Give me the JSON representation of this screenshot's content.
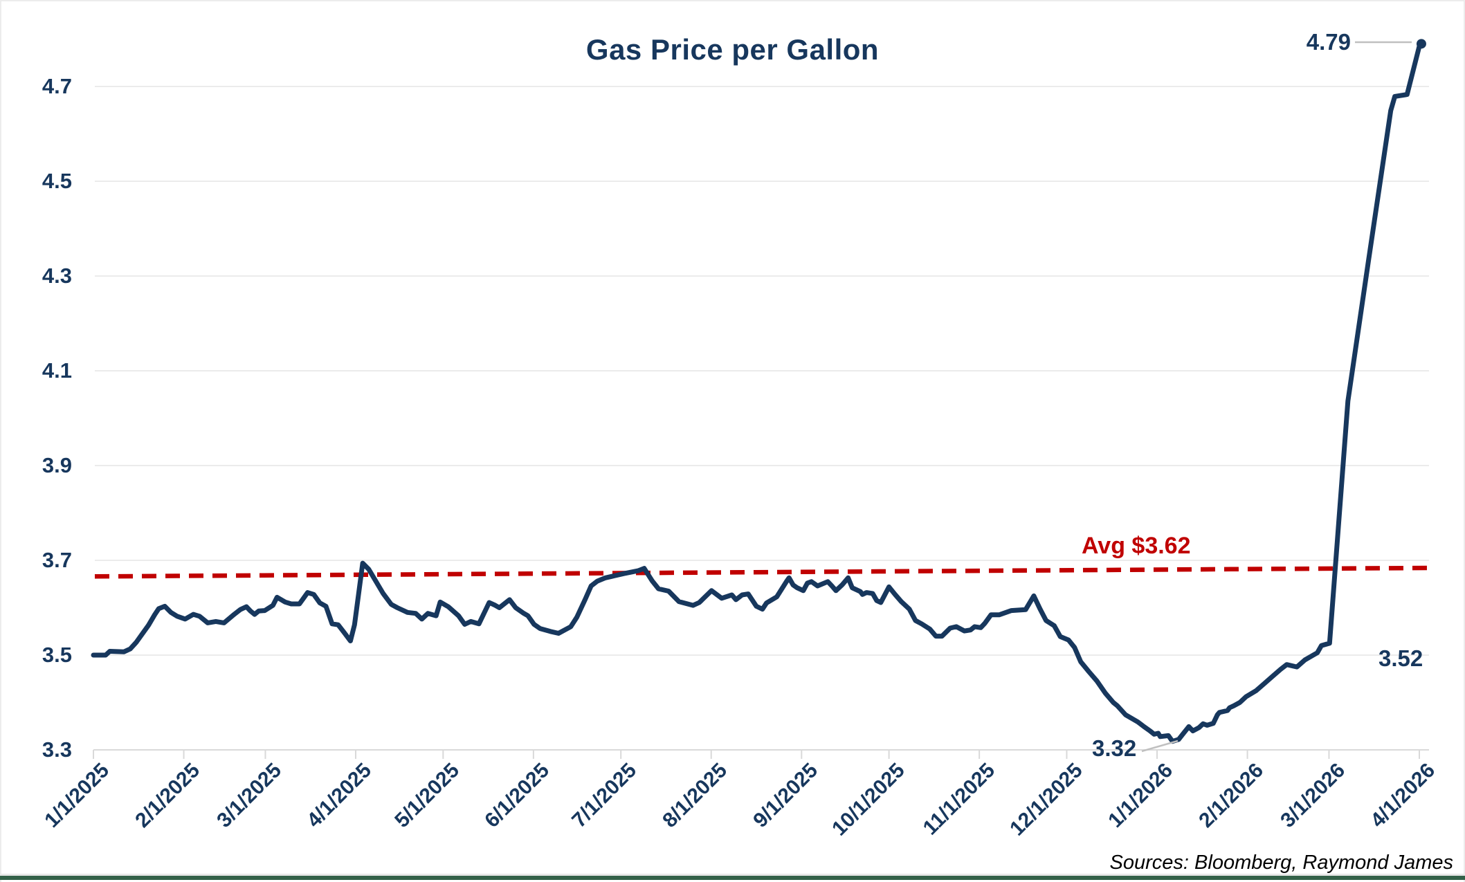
{
  "title": "Gas Price per Gallon",
  "source_note": "Sources: Bloomberg, Raymond James",
  "annotations": {
    "avg_label": "Avg $3.62",
    "peak_label": "4.79",
    "pre_spike_label": "3.52",
    "min_label": "3.32"
  },
  "colors": {
    "navy": "#17375d",
    "red": "#c00000",
    "grid": "#ebebeb",
    "axis": "#d9d9d9",
    "leader": "#c0c0c0",
    "frame_green": "#336148"
  },
  "chart_data": {
    "type": "line",
    "title": "Gas Price per Gallon",
    "ylabel": "",
    "xlabel": "",
    "ylim": [
      3.3,
      4.7
    ],
    "grid": true,
    "y_ticks": [
      3.3,
      3.5,
      3.7,
      3.9,
      4.1,
      4.3,
      4.5,
      4.7
    ],
    "x_tick_labels": [
      "1/1/2025",
      "2/1/2025",
      "3/1/2025",
      "4/1/2025",
      "5/1/2025",
      "6/1/2025",
      "7/1/2025",
      "8/1/2025",
      "9/1/2025",
      "10/1/2025",
      "11/1/2025",
      "12/1/2025",
      "1/1/2026",
      "2/1/2026",
      "3/1/2026",
      "4/1/2026"
    ],
    "x_tick_days": [
      0,
      31,
      59,
      90,
      120,
      151,
      181,
      212,
      243,
      273,
      304,
      334,
      365,
      396,
      424,
      455
    ],
    "avg_line": {
      "label": "Avg $3.62",
      "value": 3.62,
      "draw_start_value": 3.666,
      "draw_end_value": 3.684
    },
    "series": [
      {
        "name": "Gas Price per Gallon",
        "x_unit": "weeks_since_1/1/2025",
        "points": [
          [
            0,
            3.5
          ],
          [
            0.6,
            3.5
          ],
          [
            0.8,
            3.508
          ],
          [
            1.5,
            3.507
          ],
          [
            1.8,
            3.513
          ],
          [
            2.1,
            3.527
          ],
          [
            2.4,
            3.545
          ],
          [
            2.7,
            3.563
          ],
          [
            3.0,
            3.585
          ],
          [
            3.2,
            3.598
          ],
          [
            3.5,
            3.603
          ],
          [
            3.8,
            3.59
          ],
          [
            4.1,
            3.582
          ],
          [
            4.5,
            3.576
          ],
          [
            4.9,
            3.586
          ],
          [
            5.2,
            3.582
          ],
          [
            5.6,
            3.568
          ],
          [
            6.0,
            3.571
          ],
          [
            6.4,
            3.568
          ],
          [
            6.9,
            3.586
          ],
          [
            7.2,
            3.596
          ],
          [
            7.5,
            3.602
          ],
          [
            7.7,
            3.593
          ],
          [
            7.9,
            3.586
          ],
          [
            8.1,
            3.593
          ],
          [
            8.4,
            3.594
          ],
          [
            8.8,
            3.605
          ],
          [
            9.0,
            3.622
          ],
          [
            9.4,
            3.612
          ],
          [
            9.7,
            3.608
          ],
          [
            10.1,
            3.608
          ],
          [
            10.3,
            3.62
          ],
          [
            10.5,
            3.632
          ],
          [
            10.8,
            3.628
          ],
          [
            11.1,
            3.61
          ],
          [
            11.4,
            3.603
          ],
          [
            11.7,
            3.566
          ],
          [
            12.0,
            3.564
          ],
          [
            12.3,
            3.547
          ],
          [
            12.6,
            3.53
          ],
          [
            12.8,
            3.564
          ],
          [
            13.2,
            3.694
          ],
          [
            13.5,
            3.681
          ],
          [
            13.9,
            3.652
          ],
          [
            14.2,
            3.63
          ],
          [
            14.6,
            3.607
          ],
          [
            14.9,
            3.6
          ],
          [
            15.4,
            3.59
          ],
          [
            15.8,
            3.588
          ],
          [
            16.1,
            3.576
          ],
          [
            16.4,
            3.588
          ],
          [
            16.8,
            3.583
          ],
          [
            17.0,
            3.612
          ],
          [
            17.4,
            3.602
          ],
          [
            17.9,
            3.583
          ],
          [
            18.2,
            3.565
          ],
          [
            18.5,
            3.571
          ],
          [
            18.9,
            3.566
          ],
          [
            19.4,
            3.611
          ],
          [
            19.7,
            3.605
          ],
          [
            19.9,
            3.6
          ],
          [
            20.4,
            3.617
          ],
          [
            20.7,
            3.6
          ],
          [
            21.1,
            3.588
          ],
          [
            21.3,
            3.583
          ],
          [
            21.6,
            3.565
          ],
          [
            21.9,
            3.556
          ],
          [
            22.4,
            3.55
          ],
          [
            22.8,
            3.546
          ],
          [
            23.4,
            3.56
          ],
          [
            23.7,
            3.58
          ],
          [
            24.1,
            3.617
          ],
          [
            24.4,
            3.646
          ],
          [
            24.7,
            3.656
          ],
          [
            25.1,
            3.663
          ],
          [
            25.4,
            3.666
          ],
          [
            26.0,
            3.672
          ],
          [
            26.7,
            3.678
          ],
          [
            27.0,
            3.683
          ],
          [
            27.4,
            3.656
          ],
          [
            27.7,
            3.64
          ],
          [
            28.2,
            3.635
          ],
          [
            28.7,
            3.613
          ],
          [
            29.4,
            3.605
          ],
          [
            29.7,
            3.611
          ],
          [
            30.3,
            3.636
          ],
          [
            30.8,
            3.62
          ],
          [
            31.3,
            3.627
          ],
          [
            31.5,
            3.617
          ],
          [
            31.8,
            3.627
          ],
          [
            32.1,
            3.629
          ],
          [
            32.5,
            3.603
          ],
          [
            32.8,
            3.597
          ],
          [
            33.0,
            3.61
          ],
          [
            33.5,
            3.623
          ],
          [
            34.0,
            3.657
          ],
          [
            34.1,
            3.663
          ],
          [
            34.3,
            3.648
          ],
          [
            34.5,
            3.642
          ],
          [
            34.8,
            3.636
          ],
          [
            35.0,
            3.652
          ],
          [
            35.2,
            3.655
          ],
          [
            35.5,
            3.646
          ],
          [
            36.0,
            3.655
          ],
          [
            36.2,
            3.646
          ],
          [
            36.4,
            3.636
          ],
          [
            36.7,
            3.648
          ],
          [
            37.0,
            3.663
          ],
          [
            37.2,
            3.642
          ],
          [
            37.6,
            3.634
          ],
          [
            37.7,
            3.628
          ],
          [
            37.9,
            3.632
          ],
          [
            38.2,
            3.63
          ],
          [
            38.4,
            3.615
          ],
          [
            38.6,
            3.611
          ],
          [
            39.0,
            3.644
          ],
          [
            39.3,
            3.628
          ],
          [
            39.6,
            3.613
          ],
          [
            40.0,
            3.597
          ],
          [
            40.3,
            3.573
          ],
          [
            40.6,
            3.566
          ],
          [
            41.0,
            3.555
          ],
          [
            41.3,
            3.54
          ],
          [
            41.6,
            3.54
          ],
          [
            42.0,
            3.557
          ],
          [
            42.3,
            3.56
          ],
          [
            42.7,
            3.551
          ],
          [
            43.0,
            3.553
          ],
          [
            43.2,
            3.56
          ],
          [
            43.5,
            3.558
          ],
          [
            43.7,
            3.567
          ],
          [
            44.0,
            3.585
          ],
          [
            44.4,
            3.585
          ],
          [
            45.0,
            3.594
          ],
          [
            45.7,
            3.596
          ],
          [
            46.1,
            3.625
          ],
          [
            46.4,
            3.598
          ],
          [
            46.7,
            3.573
          ],
          [
            47.1,
            3.562
          ],
          [
            47.4,
            3.539
          ],
          [
            47.8,
            3.532
          ],
          [
            48.1,
            3.516
          ],
          [
            48.4,
            3.486
          ],
          [
            48.8,
            3.465
          ],
          [
            49.2,
            3.445
          ],
          [
            49.6,
            3.42
          ],
          [
            50.0,
            3.4
          ],
          [
            50.2,
            3.393
          ],
          [
            50.6,
            3.374
          ],
          [
            51.2,
            3.359
          ],
          [
            51.5,
            3.349
          ],
          [
            51.8,
            3.34
          ],
          [
            52.0,
            3.333
          ],
          [
            52.2,
            3.335
          ],
          [
            52.3,
            3.328
          ],
          [
            52.7,
            3.33
          ],
          [
            52.9,
            3.318
          ],
          [
            53.2,
            3.322
          ],
          [
            53.4,
            3.333
          ],
          [
            53.7,
            3.349
          ],
          [
            53.9,
            3.34
          ],
          [
            54.2,
            3.347
          ],
          [
            54.4,
            3.355
          ],
          [
            54.6,
            3.352
          ],
          [
            54.9,
            3.356
          ],
          [
            55.1,
            3.374
          ],
          [
            55.2,
            3.379
          ],
          [
            55.6,
            3.383
          ],
          [
            55.7,
            3.389
          ],
          [
            55.9,
            3.393
          ],
          [
            56.2,
            3.4
          ],
          [
            56.5,
            3.412
          ],
          [
            57.0,
            3.425
          ],
          [
            57.4,
            3.44
          ],
          [
            57.8,
            3.455
          ],
          [
            58.2,
            3.47
          ],
          [
            58.5,
            3.48
          ],
          [
            59.0,
            3.475
          ],
          [
            59.4,
            3.49
          ],
          [
            59.8,
            3.5
          ],
          [
            60.0,
            3.505
          ],
          [
            60.2,
            3.52
          ],
          [
            60.6,
            3.525
          ],
          [
            61.5,
            4.036
          ],
          [
            62.5,
            4.33
          ],
          [
            63.6,
            4.649
          ],
          [
            63.8,
            4.679
          ],
          [
            64.4,
            4.683
          ],
          [
            65.0,
            4.785
          ],
          [
            65.1,
            4.79
          ]
        ]
      }
    ],
    "point_annotations": [
      {
        "label": "4.79",
        "week": 65.1,
        "value": 4.79,
        "kind": "peak"
      },
      {
        "label": "3.52",
        "week": 60.4,
        "value": 3.52,
        "kind": "pre_spike"
      },
      {
        "label": "3.32",
        "week": 52.9,
        "value": 3.32,
        "kind": "minimum"
      }
    ],
    "legend": "none"
  }
}
